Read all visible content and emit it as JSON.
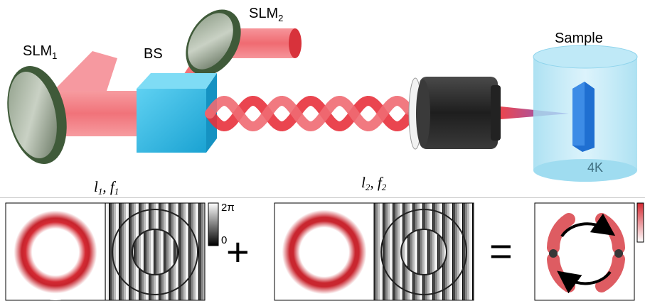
{
  "labels": {
    "slm1": "SLM",
    "slm1_sub": "1",
    "slm2": "SLM",
    "slm2_sub": "2",
    "bs": "BS",
    "sample": "Sample",
    "temperature": "4K",
    "beam1_l": "l",
    "beam1_l_sub": "1",
    "beam1_sep": ", ",
    "beam1_f": "f",
    "beam1_f_sub": "1",
    "beam2_l": "l",
    "beam2_l_sub": "2",
    "beam2_sep": ", ",
    "beam2_f": "f",
    "beam2_f_sub": "2"
  },
  "colorbar": {
    "max_label": "2π",
    "min_label": "0"
  },
  "operators": {
    "plus": "+",
    "equals": "="
  },
  "colors": {
    "beam_red": "#e8313c",
    "beam_light": "#f37a80",
    "mirror_green": "#4f6b47",
    "cube_cyan": "#2fb8e0",
    "objective": "#2b2b2b",
    "cryostat": "#a9e2f3",
    "sample_blue": "#1f6fd1"
  }
}
